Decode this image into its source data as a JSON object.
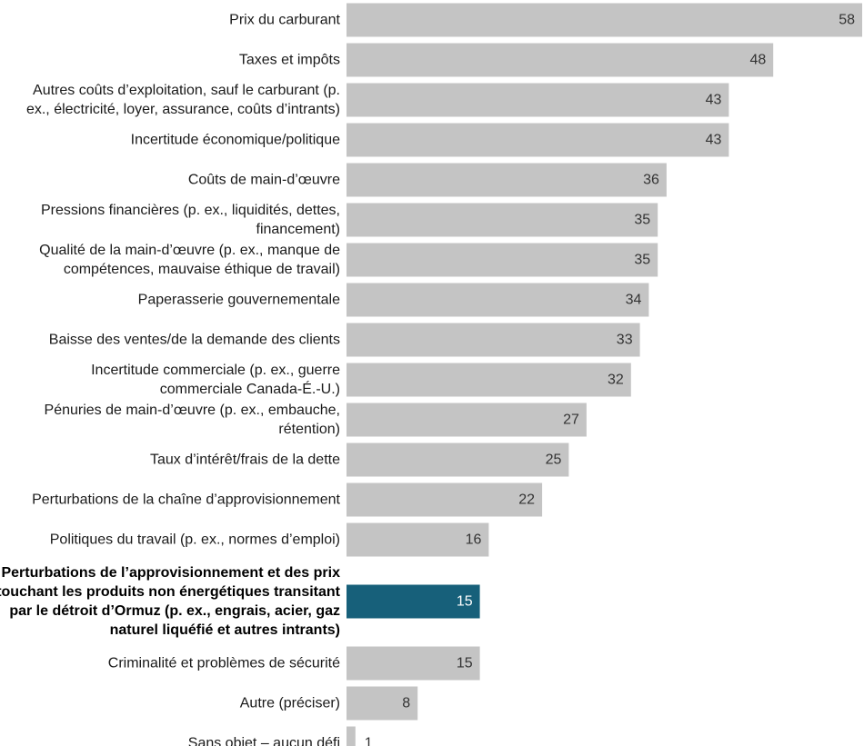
{
  "chart_data": {
    "type": "bar",
    "orientation": "horizontal",
    "title": "",
    "xlabel": "",
    "ylabel": "",
    "xlim": [
      0,
      58
    ],
    "grid": false,
    "legend": "none",
    "colors": {
      "default": "#c4c4c4",
      "highlight": "#17607a"
    },
    "categories": [
      "Prix du carburant",
      "Taxes et impôts",
      "Autres coûts d’exploitation, sauf le carburant (p. ex., électricité, loyer, assurance, coûts d’intrants)",
      "Incertitude économique/politique",
      "Coûts de main-d’œuvre",
      "Pressions financières (p. ex., liquidités, dettes, financement)",
      "Qualité de la main-d’œuvre (p. ex., manque de compétences, mauvaise éthique de travail)",
      "Paperasserie gouvernementale",
      "Baisse des ventes/de la demande des clients",
      "Incertitude commerciale (p. ex., guerre commerciale Canada-É.-U.)",
      "Pénuries de main-d’œuvre (p. ex., embauche, rétention)",
      "Taux d’intérêt/frais de la dette",
      "Perturbations de la chaîne d’approvisionnement",
      "Politiques du travail (p. ex., normes d’emploi)",
      "Perturbations de l’approvisionnement et des prix touchant les produits non énergétiques transitant par le détroit d’Ormuz (p. ex., engrais, acier, gaz naturel liquéfié et autres intrants)",
      "Criminalité et problèmes de sécurité",
      "Autre (préciser)",
      "Sans objet – aucun défi"
    ],
    "values": [
      58,
      48,
      43,
      43,
      36,
      35,
      35,
      34,
      33,
      32,
      27,
      25,
      22,
      16,
      15,
      15,
      8,
      1
    ],
    "value_labels": [
      "58",
      "48",
      "43",
      "43",
      "36",
      "35",
      "35",
      "34",
      "33",
      "32",
      "27",
      "25",
      "22",
      "16",
      "15",
      "15",
      "8",
      "1"
    ],
    "highlight_index": 14
  }
}
